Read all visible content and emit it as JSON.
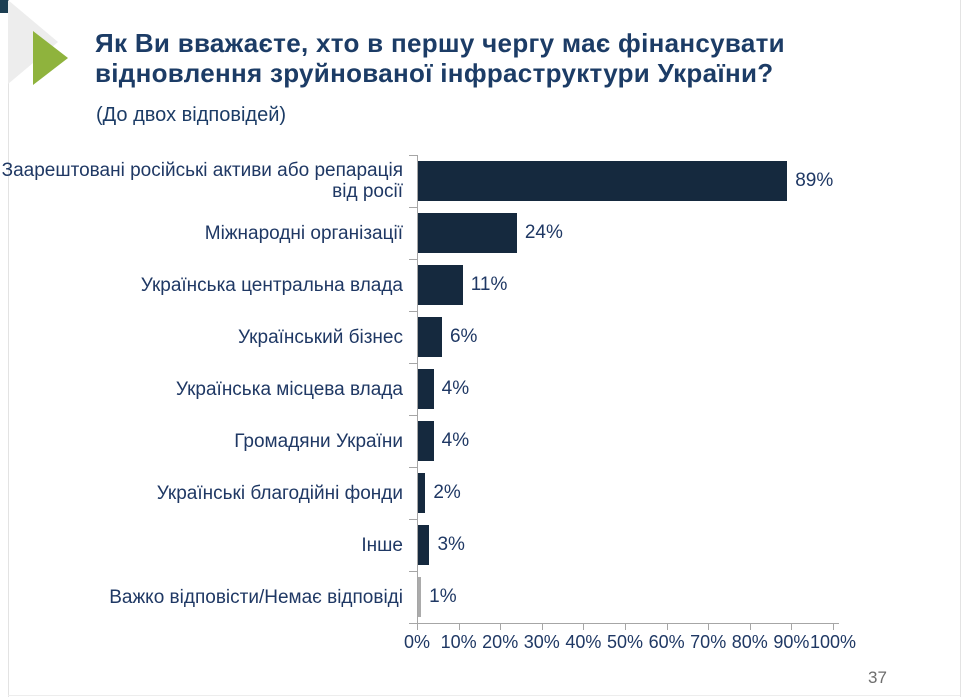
{
  "header": {
    "title": "Як Ви вважаєте, хто в першу чергу має фінансувати відновлення зруйнованої інфраструктури України?",
    "subtitle": "(До двох відповідей)"
  },
  "colors": {
    "bar": "#15293e",
    "muted_bar": "#ababab",
    "accent_green": "#8fb33d",
    "decor_gray": "#ededed",
    "corner_dark": "#1c3e52",
    "text_navy": "#1f3864",
    "axis": "#a6a6a6"
  },
  "chart_data": {
    "type": "bar",
    "orientation": "horizontal",
    "title": "Як Ви вважаєте, хто в першу чергу має фінансувати відновлення зруйнованої інфраструктури України?",
    "subtitle": "(До двох відповідей)",
    "categories": [
      "Заарештовані російські активи або репарація від росії",
      "Міжнародні організації",
      "Українська центральна влада",
      "Український бізнес",
      "Українська місцева влада",
      "Громадяни України",
      "Українські благодійні фонди",
      "Інше",
      "Важко відповісти/Немає відповіді"
    ],
    "values": [
      89,
      24,
      11,
      6,
      4,
      4,
      2,
      3,
      1
    ],
    "value_labels": [
      "89%",
      "24%",
      "11%",
      "6%",
      "4%",
      "4%",
      "2%",
      "3%",
      "1%"
    ],
    "muted_index": 8,
    "xlim": [
      0,
      100
    ],
    "x_tick_labels": [
      "0%",
      "10%",
      "20%",
      "30%",
      "40%",
      "50%",
      "60%",
      "70%",
      "80%",
      "90%",
      "100%"
    ],
    "grid": false,
    "legend": false
  },
  "footer": {
    "page_number": "37"
  }
}
